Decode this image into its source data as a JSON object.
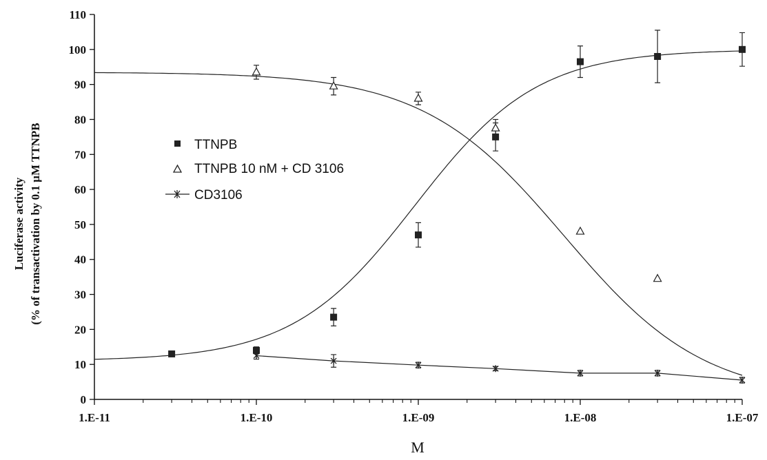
{
  "chart_data": {
    "type": "scatter",
    "title": "",
    "xlabel": "M",
    "ylabel_line1": "Luciferase activity",
    "ylabel_line2": "(% of transactivation by 0.1 µM TTNPB",
    "xscale": "log",
    "xlim": [
      1e-11,
      1e-07
    ],
    "ylim": [
      0,
      110
    ],
    "x_tick_values": [
      1e-11,
      1e-10,
      1e-09,
      1e-08,
      1e-07
    ],
    "x_tick_labels": [
      "1.E-11",
      "1.E-10",
      "1.E-09",
      "1.E-08",
      "1.E-07"
    ],
    "y_ticks": [
      0,
      10,
      20,
      30,
      40,
      50,
      60,
      70,
      80,
      90,
      100,
      110
    ],
    "grid": false,
    "legend_position": "center-left",
    "series": [
      {
        "name": "TTNPB",
        "marker": "filled-square",
        "points": [
          {
            "x": 3e-11,
            "y": 13,
            "err": 0
          },
          {
            "x": 1e-10,
            "y": 14,
            "err": 1
          },
          {
            "x": 3e-10,
            "y": 23.5,
            "err": 2.5
          },
          {
            "x": 1e-09,
            "y": 47,
            "err": 3.5
          },
          {
            "x": 3e-09,
            "y": 75,
            "err": 4
          },
          {
            "x": 1e-08,
            "y": 96.5,
            "err": 4.5
          },
          {
            "x": 3e-08,
            "y": 98,
            "err": 7.5
          },
          {
            "x": 1e-07,
            "y": 100,
            "err": 4.8
          }
        ],
        "fit": {
          "bottom": 11,
          "top": 100,
          "logEC50": -9.02,
          "hill": 1.15
        }
      },
      {
        "name": "TTNPB 10 nM + CD 3106",
        "marker": "open-triangle",
        "points": [
          {
            "x": 1e-10,
            "y": 93.5,
            "err": 2
          },
          {
            "x": 3e-10,
            "y": 89.5,
            "err": 2.5
          },
          {
            "x": 1e-09,
            "y": 86,
            "err": 1.8
          },
          {
            "x": 3e-09,
            "y": 77.5,
            "err": 2.5
          },
          {
            "x": 1e-08,
            "y": 48,
            "err": 0
          },
          {
            "x": 3e-08,
            "y": 34.5,
            "err": 0
          }
        ],
        "fit": {
          "bottom": 0,
          "top": 93.5,
          "logEC50": -8.1,
          "hill": -1.0
        }
      },
      {
        "name": "CD3106",
        "marker": "star",
        "points": [
          {
            "x": 1e-10,
            "y": 12.5,
            "err": 1
          },
          {
            "x": 3e-10,
            "y": 11,
            "err": 1.8
          },
          {
            "x": 1e-09,
            "y": 9.8,
            "err": 0.8
          },
          {
            "x": 3e-09,
            "y": 8.8,
            "err": 0.6
          },
          {
            "x": 1e-08,
            "y": 7.5,
            "err": 0.8
          },
          {
            "x": 3e-08,
            "y": 7.5,
            "err": 0.8
          },
          {
            "x": 1e-07,
            "y": 5.5,
            "err": 0.8
          }
        ]
      }
    ]
  }
}
